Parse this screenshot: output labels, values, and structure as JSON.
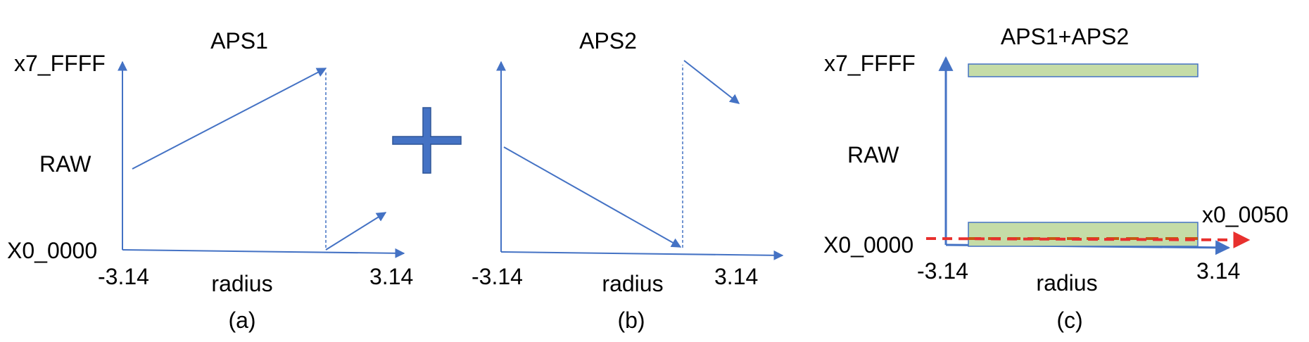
{
  "colors": {
    "axis": "#4472c4",
    "plus": "#4472c4",
    "plus_border": "#2f5597",
    "band_fill": "#c5dca7",
    "band_stroke": "#4472c4",
    "dashed_orange": "#c55a11",
    "dashed_red": "#e8302e"
  },
  "panel_a": {
    "title": "APS1",
    "y_top_label": "x7_FFFF",
    "y_mid_label": "RAW",
    "y_bottom_label": "X0_0000",
    "x_left_label": "-3.14",
    "x_right_label": "3.14",
    "x_axis_label": "radius",
    "caption": "(a)"
  },
  "panel_b": {
    "title": "APS2",
    "x_left_label": "-3.14",
    "x_right_label": "3.14",
    "x_axis_label": "radius",
    "caption": "(b)"
  },
  "panel_c": {
    "title": "APS1+APS2",
    "y_top_label": "x7_FFFF",
    "y_mid_label": "RAW",
    "y_bottom_label": "X0_0000",
    "offset_label": "x0_0050",
    "x_left_label": "-3.14",
    "x_right_label": "3.14",
    "x_axis_label": "radius",
    "caption": "(c)"
  }
}
